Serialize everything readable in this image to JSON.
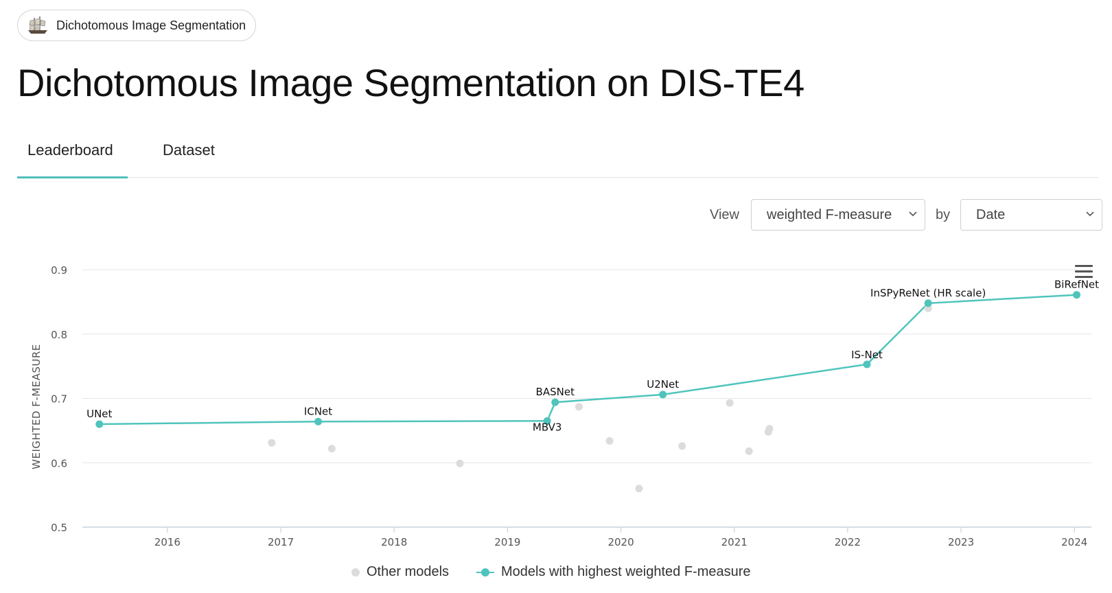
{
  "breadcrumb": {
    "label": "Dichotomous Image Segmentation",
    "icon": "sailing-ship-icon"
  },
  "page": {
    "title": "Dichotomous Image Segmentation on DIS-TE4"
  },
  "tabs": [
    {
      "label": "Leaderboard",
      "active": true
    },
    {
      "label": "Dataset",
      "active": false
    }
  ],
  "controls": {
    "view_label": "View",
    "metric_value": "weighted F-measure",
    "by_label": "by",
    "by_value": "Date"
  },
  "legend": {
    "other": "Other models",
    "best": "Models with highest weighted F-measure"
  },
  "colors": {
    "accent": "#4fc4bc",
    "other": "#dcdcdc",
    "grid": "#e6e6e6"
  },
  "chart_data": {
    "type": "scatter",
    "title": "",
    "xlabel": "",
    "ylabel": "WEIGHTED F-MEASURE",
    "xlim": [
      2015.25,
      2024.15
    ],
    "ylim": [
      0.5,
      0.9
    ],
    "x_ticks": [
      "2016",
      "2017",
      "2018",
      "2019",
      "2020",
      "2021",
      "2022",
      "2023",
      "2024"
    ],
    "y_ticks": [
      "0.5",
      "0.6",
      "0.7",
      "0.8",
      "0.9"
    ],
    "grid": true,
    "series": [
      {
        "name": "Models with highest weighted F-measure",
        "style": "line",
        "points": [
          {
            "x": 2015.4,
            "y": 0.66,
            "label": "UNet"
          },
          {
            "x": 2017.33,
            "y": 0.664,
            "label": "ICNet"
          },
          {
            "x": 2019.35,
            "y": 0.665,
            "label": "MBV3"
          },
          {
            "x": 2019.42,
            "y": 0.694,
            "label": "BASNet"
          },
          {
            "x": 2020.37,
            "y": 0.706,
            "label": "U2Net"
          },
          {
            "x": 2022.17,
            "y": 0.753,
            "label": "IS-Net"
          },
          {
            "x": 2022.71,
            "y": 0.848,
            "label": "InSPyReNet (HR scale)"
          },
          {
            "x": 2024.02,
            "y": 0.861,
            "label": "BiRefNet"
          }
        ]
      },
      {
        "name": "Other models",
        "style": "points",
        "points": [
          {
            "x": 2016.92,
            "y": 0.631
          },
          {
            "x": 2017.45,
            "y": 0.622
          },
          {
            "x": 2018.58,
            "y": 0.599
          },
          {
            "x": 2019.63,
            "y": 0.687
          },
          {
            "x": 2019.9,
            "y": 0.634
          },
          {
            "x": 2020.16,
            "y": 0.56
          },
          {
            "x": 2020.54,
            "y": 0.626
          },
          {
            "x": 2020.96,
            "y": 0.693
          },
          {
            "x": 2021.13,
            "y": 0.618
          },
          {
            "x": 2021.3,
            "y": 0.648
          },
          {
            "x": 2021.31,
            "y": 0.653
          },
          {
            "x": 2022.71,
            "y": 0.84
          }
        ]
      }
    ]
  }
}
